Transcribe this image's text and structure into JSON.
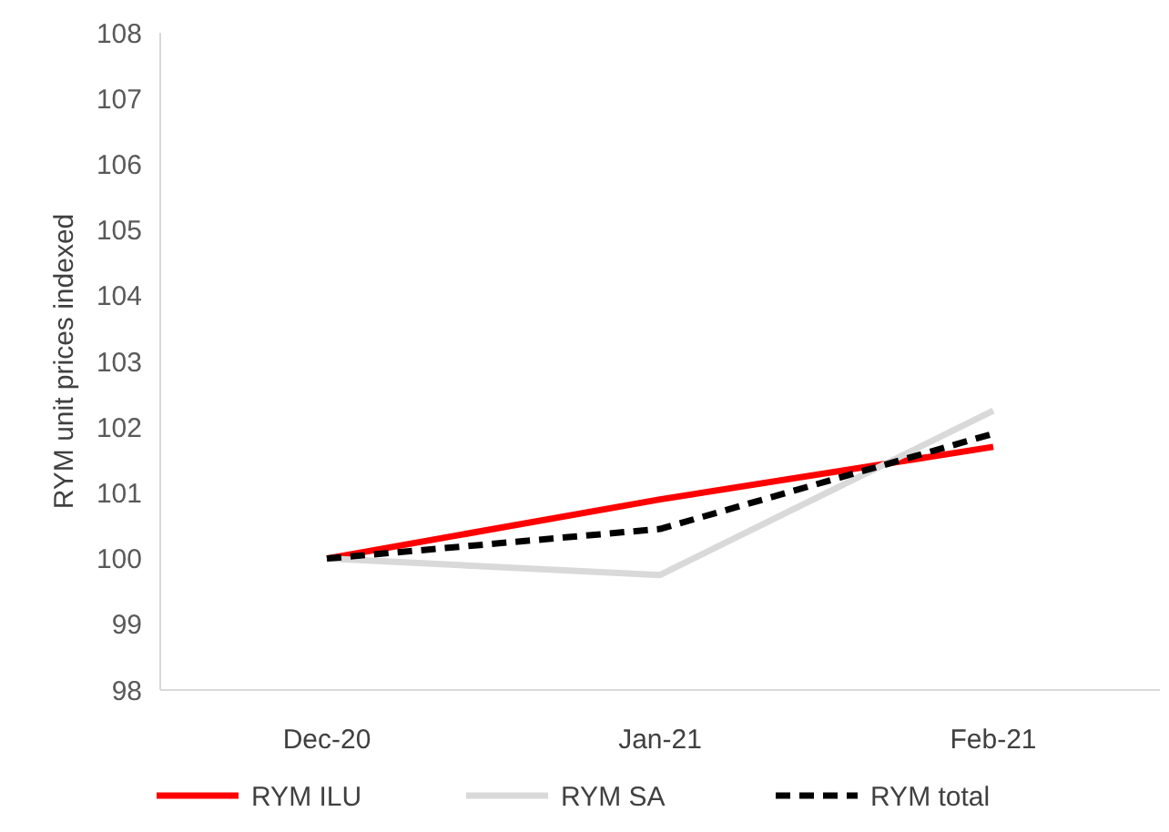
{
  "chart_data": {
    "type": "line",
    "ylabel": "RYM unit prices indexed",
    "categories": [
      "Dec-20",
      "Jan-21",
      "Feb-21"
    ],
    "ylim": [
      98,
      108
    ],
    "yticks": [
      98,
      99,
      100,
      101,
      102,
      103,
      104,
      105,
      106,
      107,
      108
    ],
    "grid": false,
    "legend": "bottom",
    "series": [
      {
        "name": "RYM ILU",
        "color": "#ff0000",
        "values": [
          100,
          100.9,
          101.7
        ],
        "line_style": "solid"
      },
      {
        "name": "RYM SA",
        "color": "#d9d9d9",
        "values": [
          100,
          99.75,
          102.25
        ],
        "line_style": "solid"
      },
      {
        "name": "RYM total",
        "color": "#000000",
        "values": [
          100,
          100.45,
          101.9
        ],
        "line_style": "dashed"
      }
    ]
  }
}
